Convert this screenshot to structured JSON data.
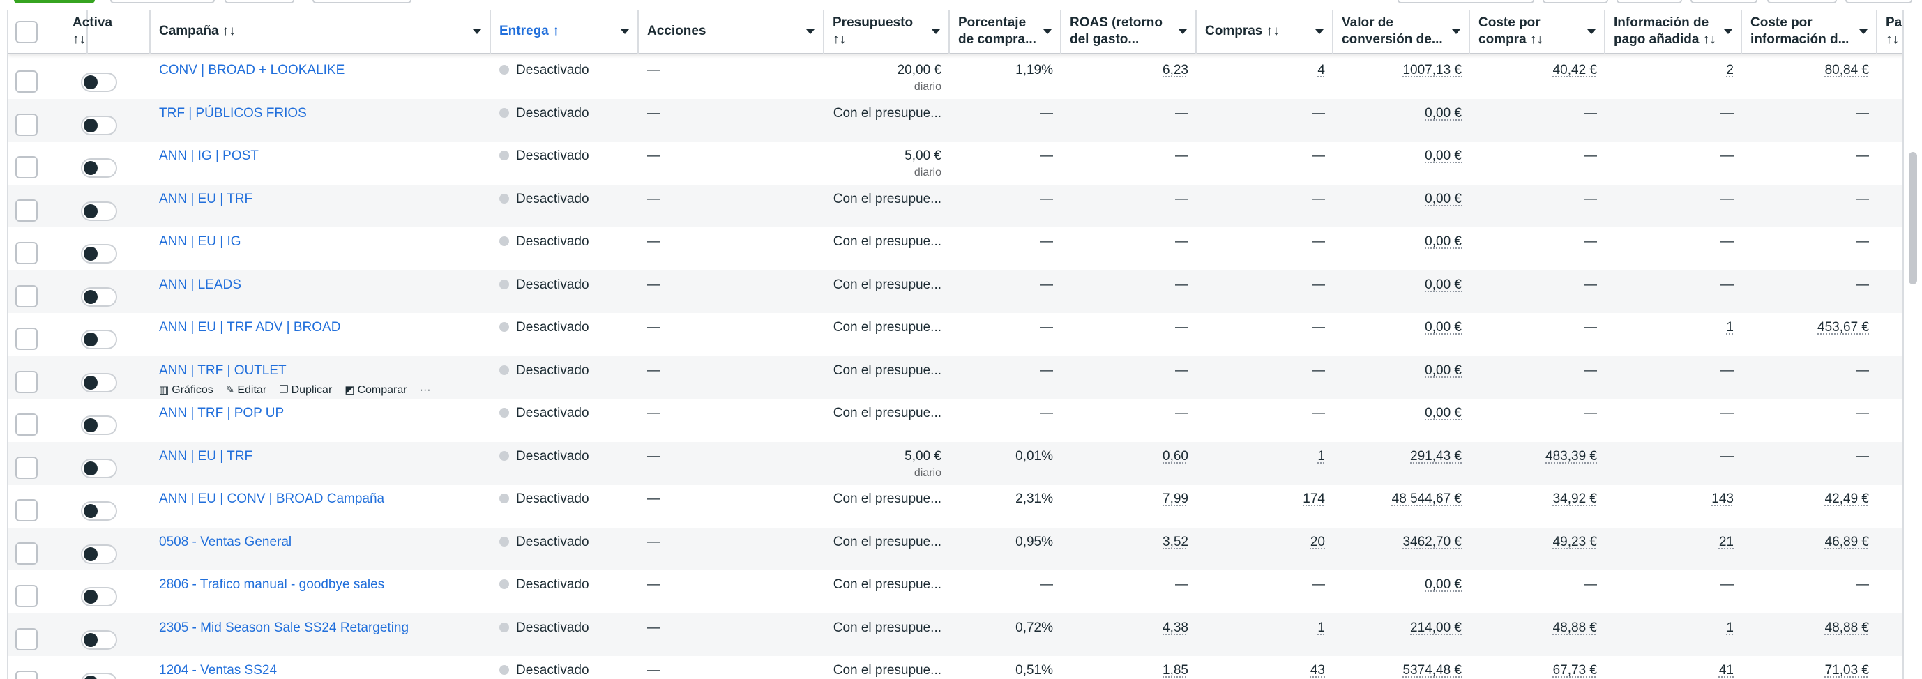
{
  "header": {
    "activa": "Activa\n↑↓",
    "campana": "Campaña ↑↓",
    "entrega": "Entrega ↑",
    "acciones": "Acciones",
    "presupuesto": "Presupuesto\n↑↓",
    "porcentaje": "Porcentaje\nde compra...",
    "roas": "ROAS (retorno\ndel gasto...",
    "compras": "Compras ↑↓",
    "valor": "Valor de\nconversión de...",
    "coste_compra": "Coste por\ncompra ↑↓",
    "info_pago": "Información de\npago añadida ↑↓",
    "coste_info": "Coste por\ninformación d...",
    "pagos": "Pagos\n↑↓"
  },
  "hover_actions": {
    "graficos": "Gráficos",
    "editar": "Editar",
    "duplicar": "Duplicar",
    "comparar": "Comparar",
    "more": "···"
  },
  "rows": [
    {
      "campaign": "CONV | BROAD + LOOKALIKE",
      "delivery": "Desactivado",
      "actions": "—",
      "budget": "20,00 €",
      "budget_sub": "diario",
      "pct": "1,19%",
      "roas": "6,23",
      "compras": "4",
      "valor": "1007,13 €",
      "coste_compra": "40,42 €",
      "info_pago": "2",
      "coste_info": "80,84 €"
    },
    {
      "campaign": "TRF | PÚBLICOS FRIOS",
      "delivery": "Desactivado",
      "actions": "—",
      "budget": "Con el presupue...",
      "budget_sub": "",
      "pct": "—",
      "roas": "—",
      "compras": "—",
      "valor": "0,00 €",
      "coste_compra": "—",
      "info_pago": "—",
      "coste_info": "—"
    },
    {
      "campaign": "ANN | IG | POST",
      "delivery": "Desactivado",
      "actions": "—",
      "budget": "5,00 €",
      "budget_sub": "diario",
      "pct": "—",
      "roas": "—",
      "compras": "—",
      "valor": "0,00 €",
      "coste_compra": "—",
      "info_pago": "—",
      "coste_info": "—"
    },
    {
      "campaign": "ANN | EU | TRF",
      "delivery": "Desactivado",
      "actions": "—",
      "budget": "Con el presupue...",
      "budget_sub": "",
      "pct": "—",
      "roas": "—",
      "compras": "—",
      "valor": "0,00 €",
      "coste_compra": "—",
      "info_pago": "—",
      "coste_info": "—"
    },
    {
      "campaign": "ANN | EU | IG",
      "delivery": "Desactivado",
      "actions": "—",
      "budget": "Con el presupue...",
      "budget_sub": "",
      "pct": "—",
      "roas": "—",
      "compras": "—",
      "valor": "0,00 €",
      "coste_compra": "—",
      "info_pago": "—",
      "coste_info": "—"
    },
    {
      "campaign": "ANN | LEADS",
      "delivery": "Desactivado",
      "actions": "—",
      "budget": "Con el presupue...",
      "budget_sub": "",
      "pct": "—",
      "roas": "—",
      "compras": "—",
      "valor": "0,00 €",
      "coste_compra": "—",
      "info_pago": "—",
      "coste_info": "—"
    },
    {
      "campaign": "ANN | EU | TRF ADV | BROAD",
      "delivery": "Desactivado",
      "actions": "—",
      "budget": "Con el presupue...",
      "budget_sub": "",
      "pct": "—",
      "roas": "—",
      "compras": "—",
      "valor": "0,00 €",
      "coste_compra": "—",
      "info_pago": "1",
      "coste_info": "453,67 €"
    },
    {
      "campaign": "ANN | TRF | OUTLET",
      "delivery": "Desactivado",
      "actions": "—",
      "budget": "Con el presupue...",
      "budget_sub": "",
      "pct": "—",
      "roas": "—",
      "compras": "—",
      "valor": "0,00 €",
      "coste_compra": "—",
      "info_pago": "—",
      "coste_info": "—",
      "hover": true
    },
    {
      "campaign": "ANN | TRF | POP UP",
      "delivery": "Desactivado",
      "actions": "—",
      "budget": "Con el presupue...",
      "budget_sub": "",
      "pct": "—",
      "roas": "—",
      "compras": "—",
      "valor": "0,00 €",
      "coste_compra": "—",
      "info_pago": "—",
      "coste_info": "—"
    },
    {
      "campaign": "ANN | EU | TRF",
      "delivery": "Desactivado",
      "actions": "—",
      "budget": "5,00 €",
      "budget_sub": "diario",
      "pct": "0,01%",
      "roas": "0,60",
      "compras": "1",
      "valor": "291,43 €",
      "coste_compra": "483,39 €",
      "info_pago": "—",
      "coste_info": "—"
    },
    {
      "campaign": "ANN | EU | CONV | BROAD Campaña",
      "delivery": "Desactivado",
      "actions": "—",
      "budget": "Con el presupue...",
      "budget_sub": "",
      "pct": "2,31%",
      "roas": "7,99",
      "compras": "174",
      "valor": "48 544,67 €",
      "coste_compra": "34,92 €",
      "info_pago": "143",
      "coste_info": "42,49 €"
    },
    {
      "campaign": "0508 - Ventas General",
      "delivery": "Desactivado",
      "actions": "—",
      "budget": "Con el presupue...",
      "budget_sub": "",
      "pct": "0,95%",
      "roas": "3,52",
      "compras": "20",
      "valor": "3462,70 €",
      "coste_compra": "49,23 €",
      "info_pago": "21",
      "coste_info": "46,89 €"
    },
    {
      "campaign": "2806 - Trafico manual - goodbye sales",
      "delivery": "Desactivado",
      "actions": "—",
      "budget": "Con el presupue...",
      "budget_sub": "",
      "pct": "—",
      "roas": "—",
      "compras": "—",
      "valor": "0,00 €",
      "coste_compra": "—",
      "info_pago": "—",
      "coste_info": "—"
    },
    {
      "campaign": "2305 - Mid Season Sale SS24 Retargeting",
      "delivery": "Desactivado",
      "actions": "—",
      "budget": "Con el presupue...",
      "budget_sub": "",
      "pct": "0,72%",
      "roas": "4,38",
      "compras": "1",
      "valor": "214,00 €",
      "coste_compra": "48,88 €",
      "info_pago": "1",
      "coste_info": "48,88 €"
    },
    {
      "campaign": "1204 - Ventas SS24",
      "delivery": "Desactivado",
      "actions": "—",
      "budget": "Con el presupue...",
      "budget_sub": "",
      "pct": "0,51%",
      "roas": "1,85",
      "compras": "43",
      "valor": "5374,48 €",
      "coste_compra": "67,73 €",
      "info_pago": "41",
      "coste_info": "71,03 €"
    }
  ]
}
